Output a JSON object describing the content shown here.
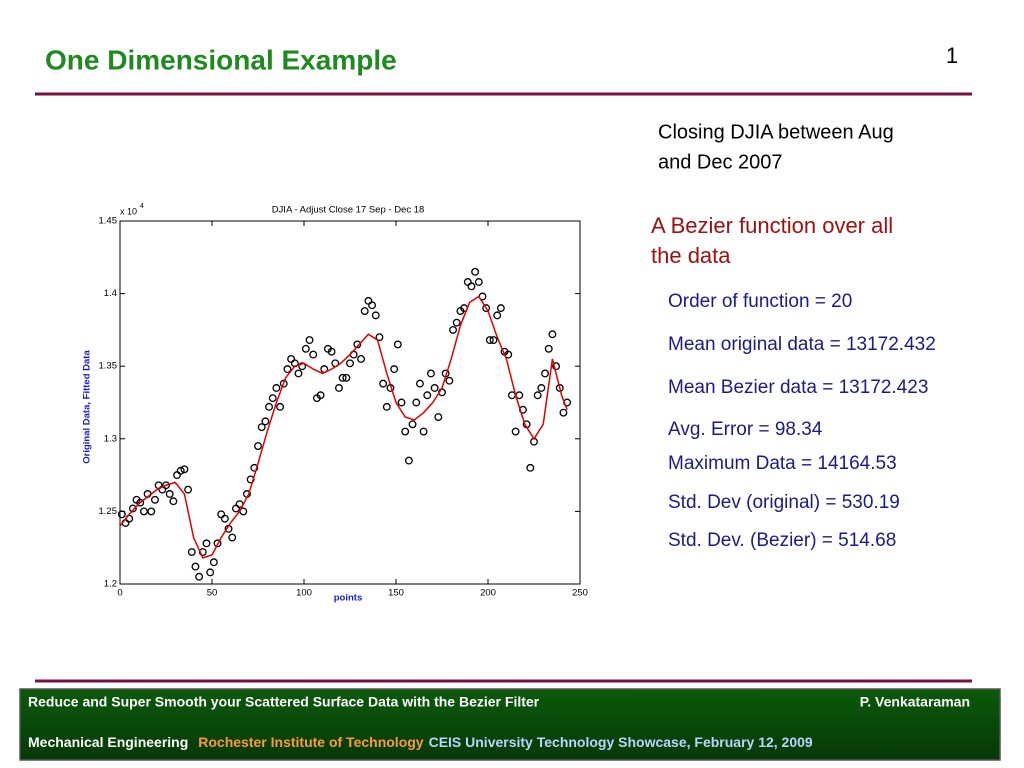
{
  "slide": {
    "title": "One Dimensional Example",
    "page_number": "1",
    "description": [
      "Closing DJIA between Aug",
      "and Dec 2007"
    ],
    "heading": [
      "A Bezier function over all",
      "the data"
    ],
    "stats": [
      "Order of function = 20",
      "Mean original data = 13172.432",
      "Mean Bezier data = 13172.423",
      "Avg. Error = 98.34",
      "Maximum Data = 14164.53",
      "Std. Dev (original) = 530.19",
      "Std. Dev. (Bezier) = 514.68"
    ],
    "footer": {
      "left": "Reduce and Super Smooth your Scattered Surface Data with the Bezier Filter",
      "right": "P. Venkataraman",
      "dept": "Mechanical Engineering",
      "institute": "Rochester Institute of Technology",
      "event": "CEIS University Technology Showcase,  February 12, 2009"
    }
  },
  "chart_data": {
    "type": "scatter",
    "title": "DJIA - Adjust Close 17 Sep - Dec 18",
    "xlabel": "points",
    "ylabel": "Original Data, Fitted Data",
    "y_multiplier": {
      "base": "x 10",
      "exponent": "4"
    },
    "xlim": [
      0,
      250
    ],
    "xticks": [
      0,
      50,
      100,
      150,
      200,
      250
    ],
    "ylim": [
      1.2,
      1.45
    ],
    "yticks": [
      1.2,
      1.25,
      1.3,
      1.35,
      1.4,
      1.45
    ],
    "series": [
      {
        "type": "scatter",
        "color": "#000000",
        "x": [
          1,
          3,
          5,
          7,
          9,
          11,
          13,
          15,
          17,
          19,
          21,
          23,
          25,
          27,
          29,
          31,
          33,
          35,
          37,
          39,
          41,
          43,
          45,
          47,
          49,
          51,
          53,
          55,
          57,
          59,
          61,
          63,
          65,
          67,
          69,
          71,
          73,
          75,
          77,
          79,
          81,
          83,
          85,
          87,
          89,
          91,
          93,
          95,
          97,
          99,
          101,
          103,
          105,
          107,
          109,
          111,
          113,
          115,
          117,
          119,
          121,
          123,
          125,
          127,
          129,
          131,
          133,
          135,
          137,
          139,
          141,
          143,
          145,
          147,
          149,
          151,
          153,
          155,
          157,
          159,
          161,
          163,
          165,
          167,
          169,
          171,
          173,
          175,
          177,
          179,
          181,
          183,
          185,
          187,
          189,
          191,
          193,
          195,
          197,
          199,
          201,
          203,
          205,
          207,
          209,
          211,
          213,
          215,
          217,
          219,
          221,
          223,
          225,
          227,
          229,
          231,
          233,
          235,
          237,
          239,
          241,
          243
        ],
        "values": [
          1.248,
          1.242,
          1.245,
          1.252,
          1.258,
          1.256,
          1.25,
          1.262,
          1.25,
          1.258,
          1.268,
          1.265,
          1.268,
          1.262,
          1.257,
          1.275,
          1.278,
          1.279,
          1.265,
          1.222,
          1.212,
          1.205,
          1.222,
          1.228,
          1.208,
          1.215,
          1.228,
          1.248,
          1.245,
          1.238,
          1.232,
          1.252,
          1.255,
          1.25,
          1.262,
          1.272,
          1.28,
          1.295,
          1.308,
          1.312,
          1.322,
          1.328,
          1.335,
          1.322,
          1.338,
          1.348,
          1.355,
          1.352,
          1.345,
          1.35,
          1.362,
          1.368,
          1.358,
          1.328,
          1.33,
          1.348,
          1.362,
          1.36,
          1.352,
          1.335,
          1.342,
          1.342,
          1.352,
          1.358,
          1.365,
          1.355,
          1.388,
          1.395,
          1.392,
          1.385,
          1.37,
          1.338,
          1.322,
          1.335,
          1.348,
          1.365,
          1.325,
          1.305,
          1.285,
          1.31,
          1.325,
          1.338,
          1.305,
          1.33,
          1.345,
          1.335,
          1.315,
          1.332,
          1.345,
          1.34,
          1.375,
          1.38,
          1.388,
          1.39,
          1.408,
          1.405,
          1.415,
          1.408,
          1.398,
          1.39,
          1.368,
          1.368,
          1.385,
          1.39,
          1.36,
          1.358,
          1.33,
          1.305,
          1.33,
          1.32,
          1.31,
          1.28,
          1.298,
          1.33,
          1.335,
          1.345,
          1.362,
          1.372,
          1.35,
          1.335,
          1.318,
          1.325
        ]
      },
      {
        "type": "line",
        "color": "#e00000",
        "x": [
          0,
          5,
          10,
          15,
          20,
          25,
          30,
          35,
          40,
          45,
          50,
          55,
          60,
          65,
          70,
          75,
          80,
          85,
          90,
          95,
          100,
          105,
          110,
          115,
          120,
          125,
          130,
          135,
          140,
          145,
          150,
          155,
          160,
          165,
          170,
          175,
          180,
          185,
          190,
          195,
          200,
          205,
          210,
          215,
          220,
          225,
          230,
          235,
          240,
          243
        ],
        "values": [
          1.24,
          1.248,
          1.255,
          1.26,
          1.265,
          1.268,
          1.27,
          1.262,
          1.232,
          1.218,
          1.22,
          1.232,
          1.242,
          1.25,
          1.262,
          1.283,
          1.305,
          1.325,
          1.342,
          1.35,
          1.352,
          1.348,
          1.345,
          1.348,
          1.352,
          1.358,
          1.365,
          1.372,
          1.368,
          1.345,
          1.325,
          1.315,
          1.313,
          1.318,
          1.325,
          1.335,
          1.355,
          1.378,
          1.394,
          1.398,
          1.388,
          1.37,
          1.355,
          1.33,
          1.31,
          1.3,
          1.31,
          1.355,
          1.33,
          1.32
        ]
      }
    ]
  }
}
